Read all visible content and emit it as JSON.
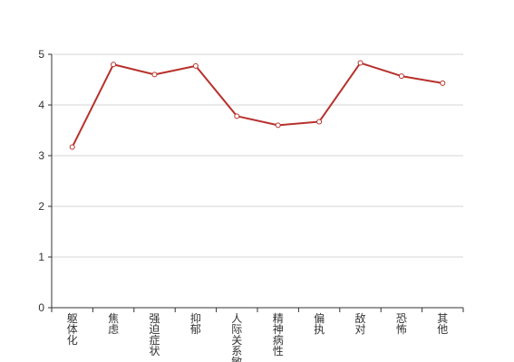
{
  "chart_data": {
    "type": "line",
    "categories": [
      "躯体化",
      "焦虑",
      "强迫症状",
      "抑郁",
      "人际关系敏感",
      "精神病性",
      "偏执",
      "敌对",
      "恐怖",
      "其他"
    ],
    "series": [
      {
        "values": [
          3.17,
          4.8,
          4.6,
          4.77,
          3.78,
          3.6,
          3.67,
          4.83,
          4.57,
          4.43
        ],
        "color": "#b7312c"
      }
    ],
    "y_ticks": [
      "0",
      "1",
      "2",
      "3",
      "4",
      "5"
    ],
    "ylim": [
      0,
      5
    ],
    "grid": "horizontal",
    "title": "",
    "xlabel": "",
    "ylabel": ""
  }
}
